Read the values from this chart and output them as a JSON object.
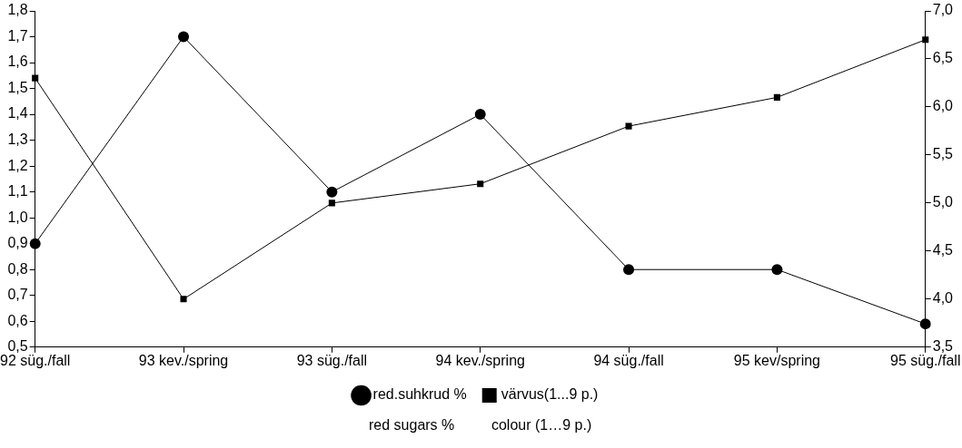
{
  "chart_data": {
    "type": "line",
    "categories": [
      "92 süg./fall",
      "93 kev./spring",
      "93 süg./fall",
      "94 kev./spring",
      "94 süg./fall",
      "95 kev/spring",
      "95 süg./fall"
    ],
    "series": [
      {
        "name": "red.suhkrud %",
        "color": "#000000",
        "marker": "circle",
        "values": [
          0.9,
          1.7,
          1.1,
          1.4,
          0.8,
          0.8,
          0.59
        ]
      },
      {
        "name": "värvus(1...9 p.)",
        "color": "#000000",
        "marker": "square",
        "axis": "y2",
        "values": [
          6.3,
          4.0,
          5.0,
          5.2,
          5.8,
          6.1,
          6.7
        ]
      }
    ],
    "ylim": [
      0.5,
      1.8
    ],
    "yticks": [
      {
        "value": 0.5,
        "label": "0,5"
      },
      {
        "value": 0.6,
        "label": "0,6"
      },
      {
        "value": 0.7,
        "label": "0,7"
      },
      {
        "value": 0.8,
        "label": "0,8"
      },
      {
        "value": 0.9,
        "label": "0,9"
      },
      {
        "value": 1.0,
        "label": "1,0"
      },
      {
        "value": 1.1,
        "label": "1,1"
      },
      {
        "value": 1.2,
        "label": "1,2"
      },
      {
        "value": 1.3,
        "label": "1,3"
      },
      {
        "value": 1.4,
        "label": "1,4"
      },
      {
        "value": 1.5,
        "label": "1,5"
      },
      {
        "value": 1.6,
        "label": "1,6"
      },
      {
        "value": 1.7,
        "label": "1,7"
      },
      {
        "value": 1.8,
        "label": "1,8"
      }
    ],
    "y2lim": [
      3.5,
      7.0
    ],
    "y2ticks": [
      {
        "value": 3.5,
        "label": "3,5"
      },
      {
        "value": 4.0,
        "label": "4,0"
      },
      {
        "value": 4.5,
        "label": "4,5"
      },
      {
        "value": 5.0,
        "label": "5,0"
      },
      {
        "value": 5.5,
        "label": "5,5"
      },
      {
        "value": 6.0,
        "label": "6,0"
      },
      {
        "value": 6.5,
        "label": "6,5"
      },
      {
        "value": 7.0,
        "label": "7,0"
      }
    ],
    "annotations": [
      "red sugars %",
      "colour (1…9 p.)"
    ],
    "grid": false,
    "legend": "bottom",
    "line_style": "solid"
  }
}
